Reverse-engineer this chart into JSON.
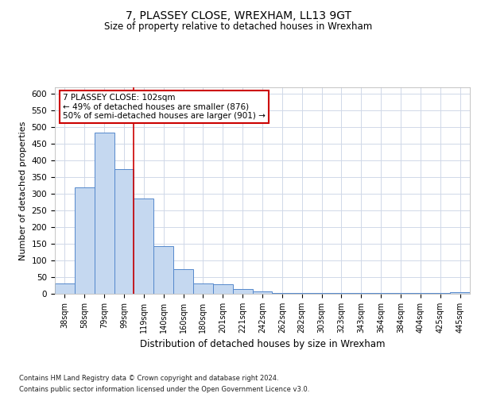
{
  "title": "7, PLASSEY CLOSE, WREXHAM, LL13 9GT",
  "subtitle": "Size of property relative to detached houses in Wrexham",
  "xlabel": "Distribution of detached houses by size in Wrexham",
  "ylabel": "Number of detached properties",
  "categories": [
    "38sqm",
    "58sqm",
    "79sqm",
    "99sqm",
    "119sqm",
    "140sqm",
    "160sqm",
    "180sqm",
    "201sqm",
    "221sqm",
    "242sqm",
    "262sqm",
    "282sqm",
    "303sqm",
    "323sqm",
    "343sqm",
    "364sqm",
    "384sqm",
    "404sqm",
    "425sqm",
    "445sqm"
  ],
  "values": [
    30,
    320,
    483,
    375,
    287,
    143,
    75,
    30,
    28,
    15,
    8,
    3,
    3,
    3,
    3,
    3,
    3,
    3,
    3,
    3,
    5
  ],
  "bar_color": "#c5d8f0",
  "bar_edge_color": "#5588cc",
  "vline_x": 3.5,
  "vline_color": "#cc0000",
  "annotation_text": "7 PLASSEY CLOSE: 102sqm\n← 49% of detached houses are smaller (876)\n50% of semi-detached houses are larger (901) →",
  "annotation_box_color": "#ffffff",
  "annotation_box_edge_color": "#cc0000",
  "ylim": [
    0,
    620
  ],
  "yticks": [
    0,
    50,
    100,
    150,
    200,
    250,
    300,
    350,
    400,
    450,
    500,
    550,
    600
  ],
  "background_color": "#ffffff",
  "grid_color": "#d0d8e8",
  "footer_line1": "Contains HM Land Registry data © Crown copyright and database right 2024.",
  "footer_line2": "Contains public sector information licensed under the Open Government Licence v3.0."
}
